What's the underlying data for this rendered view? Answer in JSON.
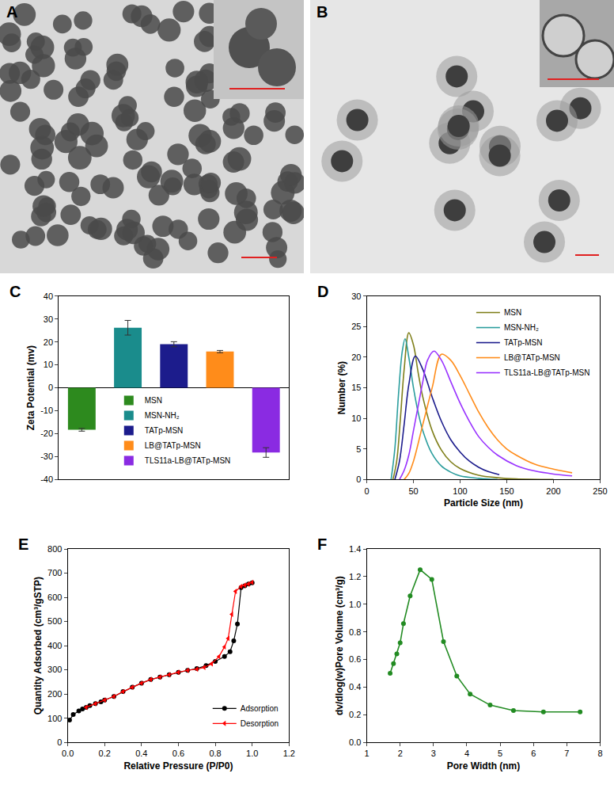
{
  "chart_data": [
    {
      "type": "image",
      "title": "A"
    },
    {
      "type": "image",
      "title": "B"
    },
    {
      "type": "bar",
      "title": "C",
      "categories": [
        "MSN",
        "MSN-NH₂",
        "TATp-MSN",
        "LB@TATp-MSN",
        "TLS11a-LB@TATp-MSN"
      ],
      "values": [
        -18.3,
        26.2,
        19.0,
        15.8,
        -28.2
      ],
      "errors": [
        0.6,
        3.2,
        1.1,
        0.5,
        2.1
      ],
      "colors": [
        "#2d8a1e",
        "#1a8c8c",
        "#1c1c8c",
        "#ff8c1a",
        "#8a2be2"
      ],
      "ylabel": "Zeta Potential (mv)",
      "ylim": [
        -40,
        40
      ],
      "yticks": [
        -40,
        -30,
        -20,
        -10,
        0,
        10,
        20,
        30,
        40
      ],
      "legend": "lower center",
      "tick_labels": "y"
    },
    {
      "type": "line",
      "title": "D",
      "xlabel": "Particle Size (nm)",
      "ylabel": "Number (%)",
      "xlim": [
        0,
        250
      ],
      "xticks": [
        0,
        50,
        100,
        150,
        200,
        250
      ],
      "ylim": [
        0,
        30
      ],
      "yticks": [
        0,
        5,
        10,
        15,
        20,
        25,
        30
      ],
      "legend": "upper right",
      "series": [
        {
          "name": "MSN",
          "color": "#7f7f1a",
          "x": [
            28,
            32,
            36,
            40,
            45,
            50,
            55,
            60,
            70,
            80,
            90,
            100,
            120,
            140,
            160,
            200
          ],
          "values": [
            0,
            3,
            10,
            18,
            24,
            22,
            17.5,
            13.5,
            8,
            4.8,
            2.9,
            1.8,
            0.7,
            0.3,
            0.1,
            0
          ]
        },
        {
          "name": "MSN-NH₂",
          "color": "#2a9d9d",
          "x": [
            26,
            30,
            34,
            38,
            41,
            45,
            50,
            55,
            60,
            70,
            80,
            90,
            100,
            120,
            140
          ],
          "values": [
            0,
            5,
            14,
            21,
            23,
            20,
            15,
            11,
            8,
            4.2,
            2.2,
            1.2,
            0.6,
            0.2,
            0
          ]
        },
        {
          "name": "TATp-MSN",
          "color": "#1c1c8c",
          "x": [
            30,
            35,
            40,
            45,
            52,
            60,
            70,
            80,
            90,
            100,
            110,
            120,
            130,
            142
          ],
          "values": [
            0,
            3,
            9,
            15.5,
            20.2,
            18,
            13.5,
            9.5,
            6.5,
            4.5,
            3,
            2,
            1.3,
            0.8
          ]
        },
        {
          "name": "LB@TATp-MSN",
          "color": "#ff8c1a",
          "x": [
            40,
            45,
            50,
            60,
            70,
            80,
            90,
            100,
            110,
            120,
            130,
            140,
            150,
            160,
            180,
            200,
            220
          ],
          "values": [
            0,
            1,
            3,
            9,
            15,
            20.5,
            19.5,
            17,
            14,
            11,
            8.5,
            6.5,
            5,
            4,
            2.5,
            1.7,
            1.1
          ]
        },
        {
          "name": "TLS11a-LB@TATp-MSN",
          "color": "#9933ff",
          "x": [
            35,
            40,
            45,
            50,
            55,
            60,
            65,
            72,
            80,
            90,
            100,
            110,
            120,
            130,
            140,
            160,
            180,
            200,
            220
          ],
          "values": [
            0,
            1.5,
            4,
            8,
            12,
            16,
            19.5,
            21,
            19.5,
            16,
            12.5,
            9.5,
            7,
            5.3,
            4,
            2.3,
            1.4,
            0.9,
            0.6
          ]
        }
      ]
    },
    {
      "type": "scatter",
      "title": "E",
      "xlabel": "Relative Pressure (P/P0)",
      "ylabel": "Quantity Adsorbed (cm³/gSTP)",
      "xlim": [
        0,
        1.2
      ],
      "xticks": [
        {
          "value": 0,
          "label": "0.0"
        },
        {
          "value": 0.2,
          "label": "0.2"
        },
        {
          "value": 0.4,
          "label": "0.4"
        },
        {
          "value": 0.6,
          "label": "0.6"
        },
        {
          "value": 0.8,
          "label": "0.8"
        },
        {
          "value": 1.0,
          "label": "1.0"
        },
        {
          "value": 1.2,
          "label": "1.2"
        }
      ],
      "ylim": [
        0,
        800
      ],
      "yticks": [
        0,
        100,
        200,
        300,
        400,
        500,
        600,
        700,
        800
      ],
      "legend": "lower right",
      "series": [
        {
          "name": "Adsorption",
          "color": "#000000",
          "marker": "circle",
          "x": [
            0.01,
            0.03,
            0.06,
            0.08,
            0.1,
            0.12,
            0.15,
            0.18,
            0.2,
            0.25,
            0.3,
            0.35,
            0.4,
            0.45,
            0.5,
            0.55,
            0.6,
            0.65,
            0.7,
            0.75,
            0.8,
            0.85,
            0.88,
            0.9,
            0.92,
            0.94,
            0.96,
            0.98,
            1.0
          ],
          "values": [
            92,
            115,
            130,
            138,
            145,
            152,
            160,
            168,
            175,
            190,
            210,
            228,
            245,
            260,
            270,
            280,
            290,
            298,
            305,
            318,
            335,
            355,
            375,
            420,
            490,
            640,
            648,
            655,
            660
          ]
        },
        {
          "name": "Desorption",
          "color": "#ff0000",
          "marker": "triangle-left",
          "x": [
            1.0,
            0.98,
            0.96,
            0.94,
            0.91,
            0.89,
            0.87,
            0.85,
            0.82,
            0.78,
            0.74,
            0.7,
            0.65,
            0.6,
            0.55,
            0.5,
            0.45,
            0.4,
            0.35,
            0.3,
            0.25,
            0.2,
            0.15,
            0.1
          ],
          "values": [
            662,
            655,
            650,
            645,
            625,
            530,
            430,
            395,
            355,
            325,
            310,
            303,
            298,
            290,
            280,
            270,
            260,
            245,
            228,
            210,
            190,
            175,
            160,
            145
          ]
        }
      ]
    },
    {
      "type": "line",
      "title": "F",
      "marker": "circle",
      "color": "#228b22",
      "xlabel": "Pore Width (nm)",
      "ylabel": "dv/dlog(w)Pore Volume (cm³/g)",
      "xlim": [
        1,
        8
      ],
      "xticks": [
        1,
        2,
        3,
        4,
        5,
        6,
        7,
        8
      ],
      "ylim": [
        0,
        1.4
      ],
      "yticks": [
        {
          "value": 0,
          "label": "0.0"
        },
        {
          "value": 0.2,
          "label": "0.2"
        },
        {
          "value": 0.4,
          "label": "0.4"
        },
        {
          "value": 0.6,
          "label": "0.6"
        },
        {
          "value": 0.8,
          "label": "0.8"
        },
        {
          "value": 1.0,
          "label": "1.0"
        },
        {
          "value": 1.2,
          "label": "1.2"
        },
        {
          "value": 1.4,
          "label": "1.4"
        }
      ],
      "x": [
        1.7,
        1.8,
        1.9,
        2.0,
        2.1,
        2.3,
        2.6,
        2.95,
        3.3,
        3.7,
        4.1,
        4.7,
        5.4,
        6.3,
        7.4
      ],
      "values": [
        0.5,
        0.57,
        0.64,
        0.72,
        0.86,
        1.06,
        1.25,
        1.18,
        0.73,
        0.48,
        0.35,
        0.27,
        0.23,
        0.22,
        0.22
      ]
    }
  ]
}
